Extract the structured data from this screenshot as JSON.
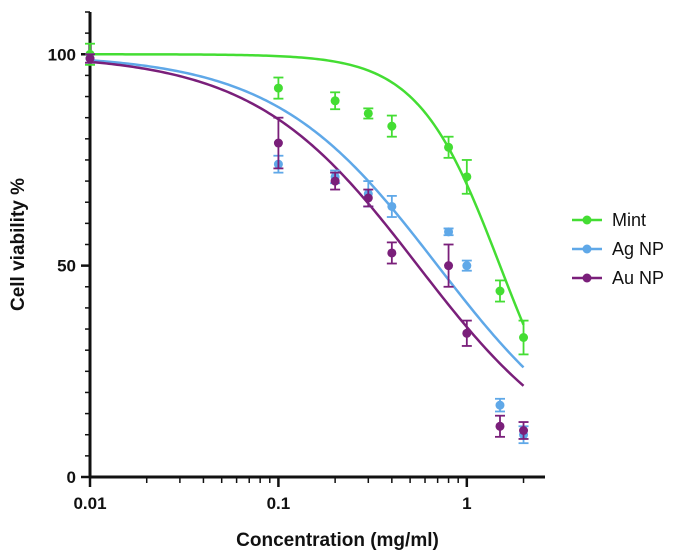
{
  "chart_data": {
    "type": "scatter",
    "title": "",
    "xlabel": "Concentration (mg/ml)",
    "ylabel": "Cell viability %",
    "x_scale": "log",
    "xlim": [
      0.01,
      2.6
    ],
    "ylim": [
      0,
      110
    ],
    "x_ticks": [
      0.01,
      0.1,
      1
    ],
    "x_tick_labels": [
      "0.01",
      "0.1",
      "1"
    ],
    "y_ticks": [
      0,
      50,
      100
    ],
    "y_tick_labels": [
      "0",
      "50",
      "100"
    ],
    "legend_position": "right",
    "fit_curves": true,
    "series": [
      {
        "name": "Mint",
        "color": "#44dd33",
        "points": [
          {
            "x": 0.01,
            "y": 100,
            "err": 2.5
          },
          {
            "x": 0.1,
            "y": 92,
            "err": 2.5
          },
          {
            "x": 0.2,
            "y": 89,
            "err": 2
          },
          {
            "x": 0.3,
            "y": 86,
            "err": 1.2
          },
          {
            "x": 0.4,
            "y": 83,
            "err": 2.5
          },
          {
            "x": 0.8,
            "y": 78,
            "err": 2.5
          },
          {
            "x": 1.0,
            "y": 71,
            "err": 4
          },
          {
            "x": 1.5,
            "y": 44,
            "err": 2.5
          },
          {
            "x": 2.0,
            "y": 33,
            "err": 4
          }
        ],
        "fit": {
          "top": 100,
          "bottom": 0,
          "ic50": 1.5,
          "hill": 2.0
        }
      },
      {
        "name": "Ag NP",
        "color": "#5fa8e8",
        "points": [
          {
            "x": 0.01,
            "y": 99,
            "err": 1
          },
          {
            "x": 0.1,
            "y": 74,
            "err": 2
          },
          {
            "x": 0.2,
            "y": 71,
            "err": 1.5
          },
          {
            "x": 0.3,
            "y": 67,
            "err": 3
          },
          {
            "x": 0.4,
            "y": 64,
            "err": 2.5
          },
          {
            "x": 0.8,
            "y": 58,
            "err": 0.8
          },
          {
            "x": 1.0,
            "y": 50,
            "err": 1.2
          },
          {
            "x": 1.5,
            "y": 17,
            "err": 1.5
          },
          {
            "x": 2.0,
            "y": 10,
            "err": 2
          }
        ],
        "fit": {
          "top": 100,
          "bottom": 0,
          "ic50": 0.7,
          "hill": 1.0
        }
      },
      {
        "name": "Au NP",
        "color": "#7a1f7a",
        "points": [
          {
            "x": 0.01,
            "y": 99,
            "err": 1
          },
          {
            "x": 0.1,
            "y": 79,
            "err": 6
          },
          {
            "x": 0.2,
            "y": 70,
            "err": 2
          },
          {
            "x": 0.3,
            "y": 66,
            "err": 2
          },
          {
            "x": 0.4,
            "y": 53,
            "err": 2.5
          },
          {
            "x": 0.8,
            "y": 50,
            "err": 5
          },
          {
            "x": 1.0,
            "y": 34,
            "err": 3
          },
          {
            "x": 1.5,
            "y": 12,
            "err": 2.5
          },
          {
            "x": 2.0,
            "y": 11,
            "err": 2
          }
        ],
        "fit": {
          "top": 100,
          "bottom": 0,
          "ic50": 0.55,
          "hill": 1.0
        }
      }
    ]
  }
}
